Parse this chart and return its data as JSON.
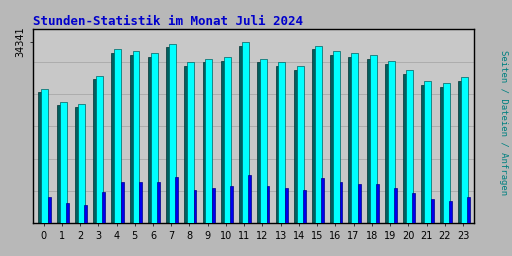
{
  "title": "Stunden-Statistik im Monat Juli 2024",
  "title_color": "#0000cc",
  "ylabel": "Seiten / Dateien / Anfragen",
  "ylabel_color": "#008080",
  "ytick_label": "34341",
  "background_color": "#b8b8b8",
  "plot_bg_color": "#c8c8c8",
  "border_color": "#000000",
  "hours": [
    0,
    1,
    2,
    3,
    4,
    5,
    6,
    7,
    8,
    9,
    10,
    11,
    12,
    13,
    14,
    15,
    16,
    17,
    18,
    19,
    20,
    21,
    22,
    23
  ],
  "seiten": [
    0.72,
    0.65,
    0.64,
    0.79,
    0.93,
    0.92,
    0.91,
    0.96,
    0.86,
    0.88,
    0.89,
    0.97,
    0.88,
    0.86,
    0.84,
    0.95,
    0.92,
    0.91,
    0.9,
    0.87,
    0.82,
    0.76,
    0.75,
    0.78
  ],
  "dateien": [
    0.7,
    0.63,
    0.62,
    0.77,
    0.91,
    0.9,
    0.89,
    0.94,
    0.84,
    0.86,
    0.87,
    0.95,
    0.86,
    0.84,
    0.82,
    0.93,
    0.9,
    0.89,
    0.88,
    0.85,
    0.8,
    0.74,
    0.73,
    0.76
  ],
  "anfragen": [
    0.14,
    0.11,
    0.1,
    0.17,
    0.22,
    0.22,
    0.22,
    0.25,
    0.18,
    0.19,
    0.2,
    0.26,
    0.2,
    0.19,
    0.18,
    0.24,
    0.22,
    0.21,
    0.21,
    0.19,
    0.16,
    0.13,
    0.12,
    0.14
  ],
  "color_seiten": "#00ffff",
  "color_dateien": "#006060",
  "color_anfragen": "#0000ee",
  "bar_edge_seiten": "#006060",
  "bar_edge_dateien": "#003030",
  "bar_edge_anfragen": "#000088",
  "figsize": [
    5.12,
    2.56
  ],
  "dpi": 100
}
